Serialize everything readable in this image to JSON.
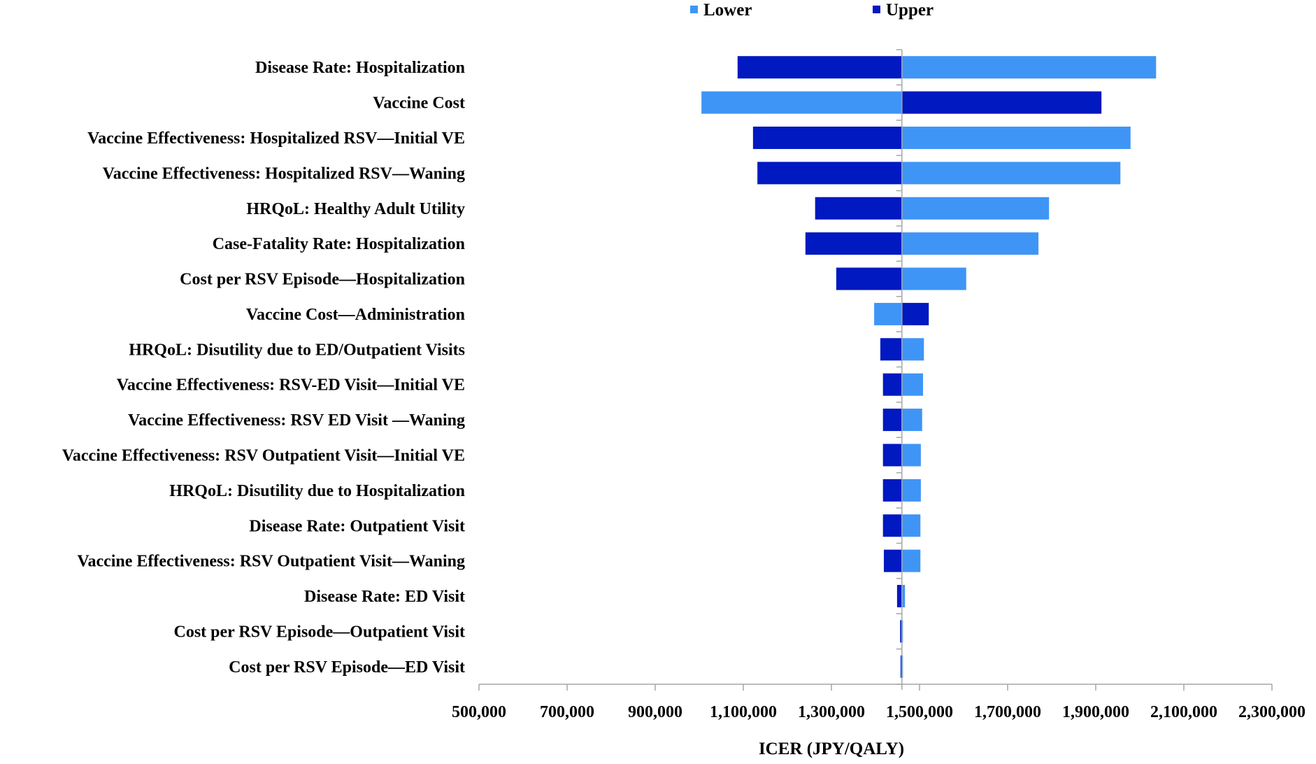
{
  "chart_data": {
    "type": "bar",
    "subtype": "tornado",
    "title": "",
    "xlabel": "ICER (JPY/QALY)",
    "ylabel": "",
    "xlim": [
      500000,
      2300000
    ],
    "base_value": 1460000,
    "x_ticks": [
      500000,
      700000,
      900000,
      1100000,
      1300000,
      1500000,
      1700000,
      1900000,
      2100000,
      2300000
    ],
    "x_tick_labels": [
      "500,000",
      "700,000",
      "900,000",
      "1,100,000",
      "1,300,000",
      "1,500,000",
      "1,700,000",
      "1,900,000",
      "2,100,000",
      "2,300,000"
    ],
    "grid": false,
    "legend": {
      "position": "top-center",
      "entries": [
        {
          "name": "Lower",
          "color": "#3F95F5"
        },
        {
          "name": "Upper",
          "color": "#0019C0"
        }
      ]
    },
    "categories": [
      "Disease Rate: Hospitalization",
      "Vaccine Cost",
      "Vaccine Effectiveness: Hospitalized RSV—Initial VE",
      "Vaccine Effectiveness: Hospitalized RSV—Waning",
      "HRQoL: Healthy Adult Utility",
      "Case-Fatality Rate: Hospitalization",
      "Cost per RSV Episode—Hospitalization",
      "Vaccine Cost—Administration",
      "HRQoL: Disutility due to ED/Outpatient Visits",
      "Vaccine Effectiveness: RSV-ED Visit—Initial VE",
      "Vaccine Effectiveness: RSV ED Visit —Waning",
      "Vaccine Effectiveness: RSV Outpatient Visit—Initial VE",
      "HRQoL: Disutility due to Hospitalization",
      "Disease Rate: Outpatient Visit",
      "Vaccine Effectiveness: RSV Outpatient Visit—Waning",
      "Disease Rate: ED Visit",
      "Cost per RSV Episode—Outpatient Visit",
      "Cost per RSV Episode—ED Visit"
    ],
    "series": [
      {
        "name": "Lower",
        "color": "#3F95F5",
        "values": [
          2037000,
          1005000,
          1979000,
          1956000,
          1794000,
          1770000,
          1606000,
          1397000,
          1510000,
          1508000,
          1506000,
          1503000,
          1503000,
          1502000,
          1502000,
          1467000,
          1462000,
          1460000
        ]
      },
      {
        "name": "Upper",
        "color": "#0019C0",
        "values": [
          1087000,
          1913000,
          1122000,
          1132000,
          1263000,
          1241000,
          1311000,
          1521000,
          1411000,
          1417000,
          1417000,
          1417000,
          1417000,
          1417000,
          1419000,
          1449000,
          1456000,
          1457000
        ]
      }
    ],
    "axis_color": "#A6A6A6"
  }
}
